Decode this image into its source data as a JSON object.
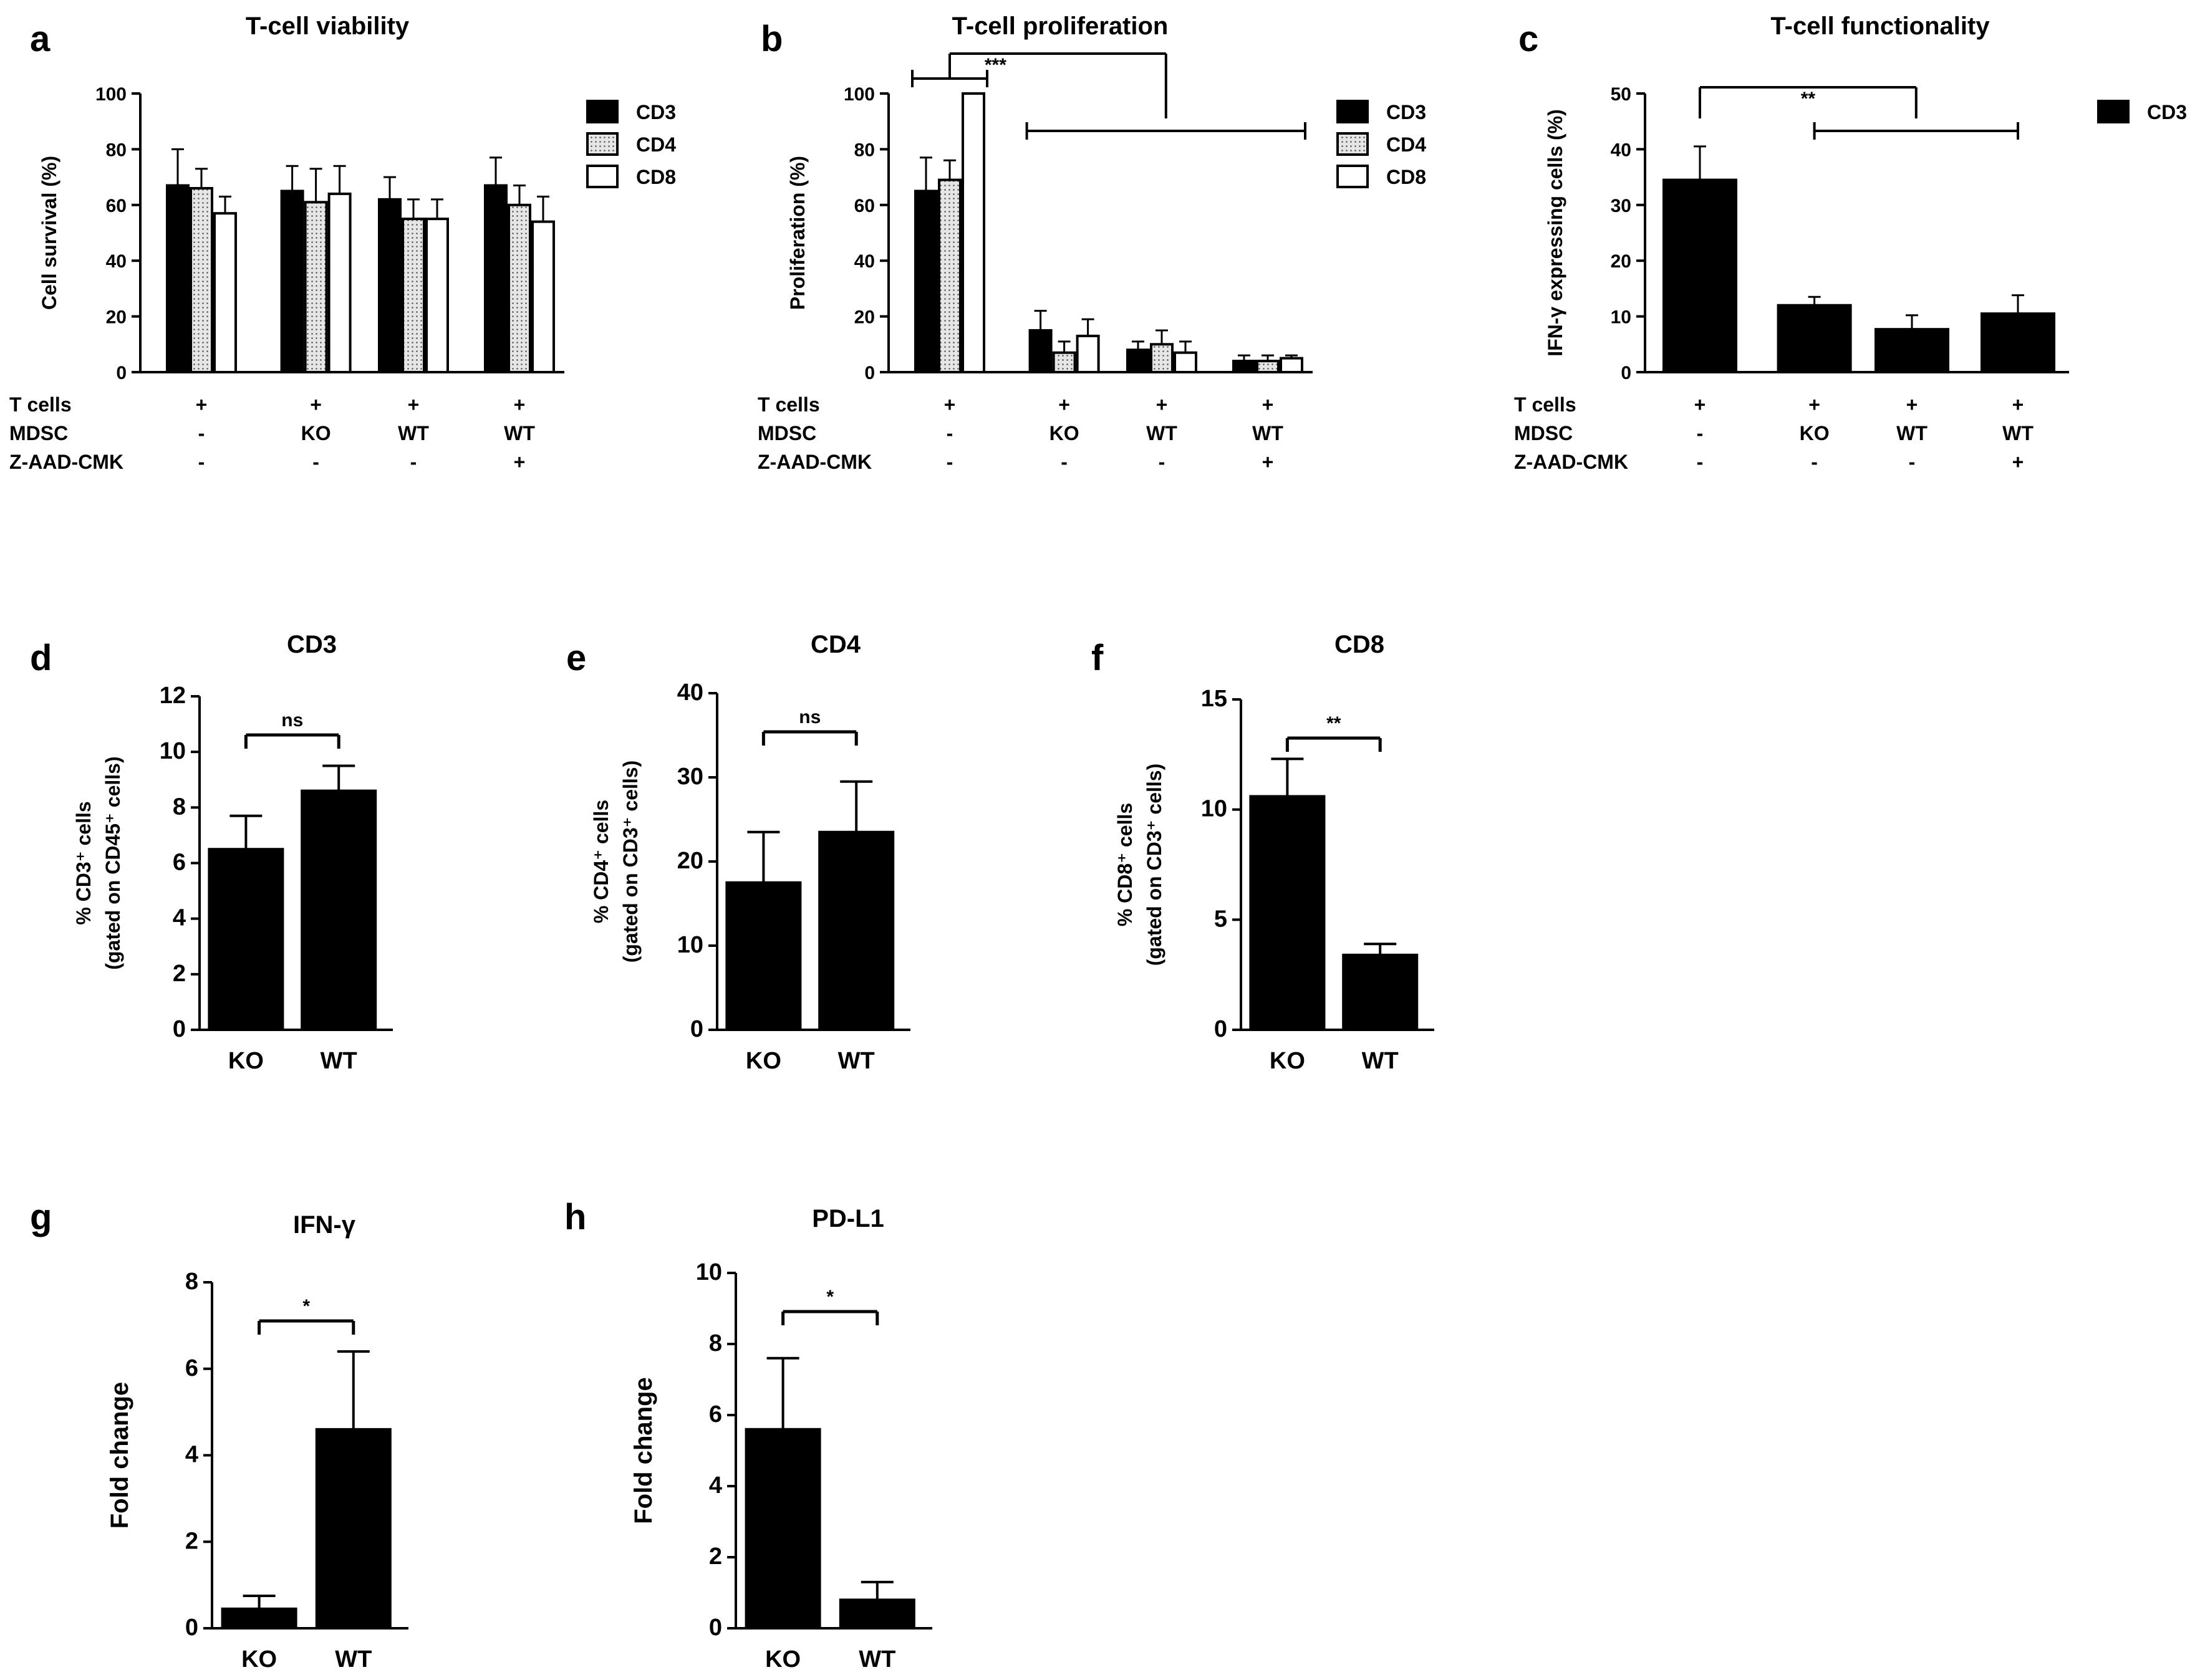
{
  "colors": {
    "bar_black": "#000000",
    "bar_dotted": "#c8c8c8",
    "bar_white": "#ffffff"
  },
  "chart_data": [
    {
      "panel": "a",
      "type": "bar",
      "title": "T-cell viability",
      "ylabel": "Cell survival (%)",
      "ylim": [
        0,
        100
      ],
      "yticks": [
        0,
        20,
        40,
        60,
        80,
        100
      ],
      "conditions": {
        "row_labels": [
          "T cells",
          "MDSC",
          "Z-AAD-CMK"
        ],
        "groups": [
          [
            "+",
            "-",
            "-"
          ],
          [
            "+",
            "KO",
            "-"
          ],
          [
            "+",
            "WT",
            "-"
          ],
          [
            "+",
            "WT",
            "+"
          ]
        ]
      },
      "legend": [
        "CD3",
        "CD4",
        "CD8"
      ],
      "legend_position": "right",
      "series": [
        {
          "name": "CD3",
          "values": [
            67,
            65,
            62,
            67
          ],
          "errors": [
            13,
            9,
            8,
            10
          ]
        },
        {
          "name": "CD4",
          "values": [
            66,
            61,
            55,
            60
          ],
          "errors": [
            7,
            12,
            7,
            7
          ]
        },
        {
          "name": "CD8",
          "values": [
            57,
            64,
            55,
            54
          ],
          "errors": [
            6,
            10,
            7,
            9
          ]
        }
      ]
    },
    {
      "panel": "b",
      "type": "bar",
      "title": "T-cell proliferation",
      "ylabel": "Proliferation (%)",
      "ylim": [
        0,
        100
      ],
      "yticks": [
        0,
        20,
        40,
        60,
        80,
        100
      ],
      "conditions": {
        "row_labels": [
          "T cells",
          "MDSC",
          "Z-AAD-CMK"
        ],
        "groups": [
          [
            "+",
            "-",
            "-"
          ],
          [
            "+",
            "KO",
            "-"
          ],
          [
            "+",
            "WT",
            "-"
          ],
          [
            "+",
            "WT",
            "+"
          ]
        ]
      },
      "legend": [
        "CD3",
        "CD4",
        "CD8"
      ],
      "legend_position": "right",
      "series": [
        {
          "name": "CD3",
          "values": [
            65,
            15,
            8,
            4
          ],
          "errors": [
            12,
            7,
            3,
            2
          ]
        },
        {
          "name": "CD4",
          "values": [
            69,
            7,
            10,
            4
          ],
          "errors": [
            7,
            4,
            5,
            2
          ]
        },
        {
          "name": "CD8",
          "values": [
            100,
            13,
            7,
            5
          ],
          "errors": [
            0,
            6,
            4,
            1
          ]
        }
      ],
      "significance": "***"
    },
    {
      "panel": "c",
      "type": "bar",
      "title": "T-cell functionality",
      "ylabel": "IFN-γ expressing cells (%)",
      "ylim": [
        0,
        50
      ],
      "yticks": [
        0,
        10,
        20,
        30,
        40,
        50
      ],
      "conditions": {
        "row_labels": [
          "T cells",
          "MDSC",
          "Z-AAD-CMK"
        ],
        "groups": [
          [
            "+",
            "-",
            "-"
          ],
          [
            "+",
            "KO",
            "-"
          ],
          [
            "+",
            "WT",
            "-"
          ],
          [
            "+",
            "WT",
            "+"
          ]
        ]
      },
      "legend": [
        "CD3"
      ],
      "legend_position": "right",
      "series": [
        {
          "name": "CD3",
          "values": [
            34.5,
            12,
            7.7,
            10.5
          ],
          "errors": [
            6,
            1.5,
            2.5,
            3.3
          ]
        }
      ],
      "significance": "**"
    },
    {
      "panel": "d",
      "type": "bar",
      "title": "CD3",
      "ylabel_line1": "% CD3⁺ cells",
      "ylabel_line2": "(gated on CD45⁺ cells)",
      "ylim": [
        0,
        12
      ],
      "yticks": [
        0,
        2,
        4,
        6,
        8,
        10,
        12
      ],
      "categories": [
        "KO",
        "WT"
      ],
      "values": [
        6.5,
        8.6
      ],
      "errors": [
        1.2,
        0.9
      ],
      "significance": "ns"
    },
    {
      "panel": "e",
      "type": "bar",
      "title": "CD4",
      "ylabel_line1": "% CD4⁺ cells",
      "ylabel_line2": "(gated on CD3⁺ cells)",
      "ylim": [
        0,
        40
      ],
      "yticks": [
        0,
        10,
        20,
        30,
        40
      ],
      "categories": [
        "KO",
        "WT"
      ],
      "values": [
        17.5,
        23.5
      ],
      "errors": [
        6,
        6
      ],
      "significance": "ns"
    },
    {
      "panel": "f",
      "type": "bar",
      "title": "CD8",
      "ylabel_line1": "% CD8⁺ cells",
      "ylabel_line2": "(gated on CD3⁺ cells)",
      "ylim": [
        0,
        15
      ],
      "yticks": [
        0,
        5,
        10,
        15
      ],
      "categories": [
        "KO",
        "WT"
      ],
      "values": [
        10.6,
        3.4
      ],
      "errors": [
        1.7,
        0.5
      ],
      "significance": "**"
    },
    {
      "panel": "g",
      "type": "bar",
      "title": "IFN-γ",
      "ylabel": "Fold change",
      "ylim": [
        0,
        8
      ],
      "yticks": [
        0,
        2,
        4,
        6,
        8
      ],
      "categories": [
        "KO",
        "WT"
      ],
      "values": [
        0.45,
        4.6
      ],
      "errors": [
        0.3,
        1.8
      ],
      "significance": "*"
    },
    {
      "panel": "h",
      "type": "bar",
      "title": "PD-L1",
      "ylabel": "Fold change",
      "ylim": [
        0,
        10
      ],
      "yticks": [
        0,
        2,
        4,
        6,
        8,
        10
      ],
      "categories": [
        "KO",
        "WT"
      ],
      "values": [
        5.6,
        0.8
      ],
      "errors": [
        2,
        0.5
      ],
      "significance": "*"
    }
  ]
}
